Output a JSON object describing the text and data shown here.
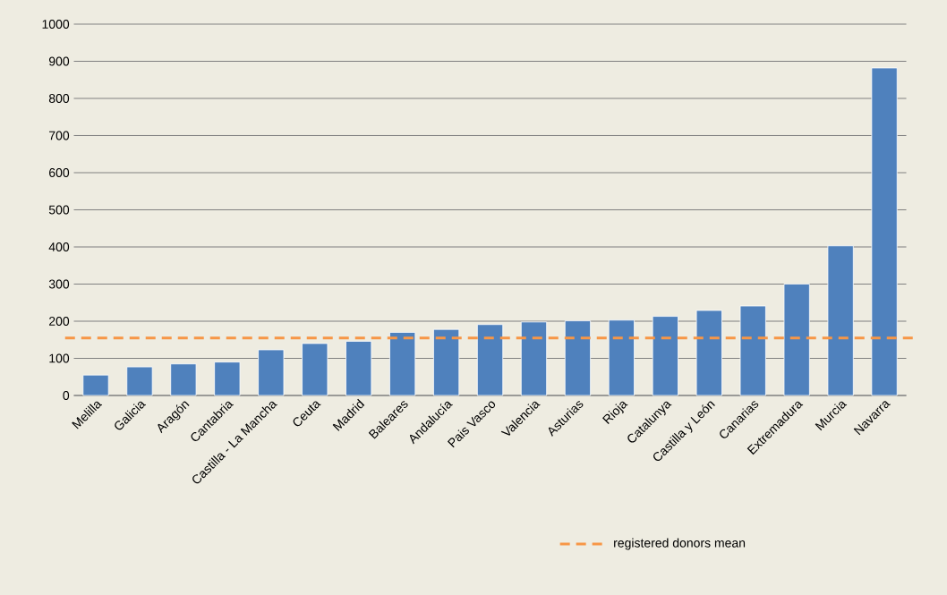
{
  "chart_data": {
    "type": "bar",
    "categories": [
      "Melilla",
      "Galicia",
      "Aragón",
      "Cantabria",
      "Castilla - La Mancha",
      "Ceuta",
      "Madrid",
      "Baleares",
      "Andalucía",
      "Pais Vasco",
      "Valencia",
      "Asturias",
      "Rioja",
      "Catalunya",
      "Castilla y León",
      "Canarias",
      "Extremadura",
      "Murcia",
      "Navarra"
    ],
    "values": [
      55,
      77,
      85,
      90,
      123,
      140,
      146,
      170,
      178,
      191,
      198,
      201,
      203,
      213,
      229,
      241,
      300,
      403,
      882
    ],
    "color": "#4f81bd",
    "ylim": [
      0,
      1000
    ],
    "yticks": [
      0,
      100,
      200,
      300,
      400,
      500,
      600,
      700,
      800,
      900,
      1000
    ],
    "grid": "y",
    "legend": "bottom right",
    "ref_lines": [
      {
        "axis": "y",
        "value": 155,
        "label": "registered donors mean",
        "color": "#f79646",
        "line_style": "dashed"
      }
    ]
  }
}
